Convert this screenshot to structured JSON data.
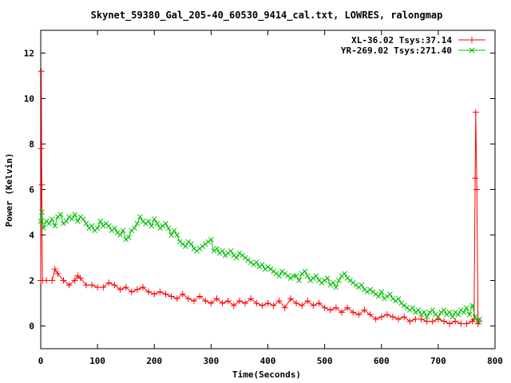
{
  "chart_data": {
    "type": "scatter",
    "title": "Skynet_59380_Gal_205-40_60530_9414_cal.txt, LOWRES, ralongmap",
    "xlabel": "Time(Seconds)",
    "ylabel": "Power (Kelvin)",
    "xlim": [
      0,
      800
    ],
    "ylim": [
      -1,
      13
    ],
    "xticks": [
      0,
      100,
      200,
      300,
      400,
      500,
      600,
      700,
      800
    ],
    "yticks": [
      0,
      2,
      4,
      6,
      8,
      10,
      12
    ],
    "grid": false,
    "legend_position": "top-right",
    "series": [
      {
        "name": "XL-36.02 Tsys:37.14",
        "color": "#ff0000",
        "marker": "plus",
        "points": [
          [
            0,
            2.0
          ],
          [
            1,
            7.8
          ],
          [
            1,
            11.2
          ],
          [
            2,
            6.2
          ],
          [
            3,
            2.0
          ],
          [
            10,
            2.0
          ],
          [
            20,
            2.0
          ],
          [
            25,
            2.5
          ],
          [
            30,
            2.3
          ],
          [
            40,
            2.0
          ],
          [
            50,
            1.8
          ],
          [
            60,
            2.0
          ],
          [
            65,
            2.2
          ],
          [
            70,
            2.1
          ],
          [
            80,
            1.8
          ],
          [
            90,
            1.8
          ],
          [
            100,
            1.7
          ],
          [
            110,
            1.7
          ],
          [
            120,
            1.9
          ],
          [
            130,
            1.8
          ],
          [
            140,
            1.6
          ],
          [
            150,
            1.7
          ],
          [
            160,
            1.5
          ],
          [
            170,
            1.6
          ],
          [
            180,
            1.7
          ],
          [
            190,
            1.5
          ],
          [
            200,
            1.4
          ],
          [
            210,
            1.5
          ],
          [
            220,
            1.4
          ],
          [
            230,
            1.3
          ],
          [
            240,
            1.2
          ],
          [
            250,
            1.4
          ],
          [
            260,
            1.2
          ],
          [
            270,
            1.1
          ],
          [
            280,
            1.3
          ],
          [
            290,
            1.1
          ],
          [
            300,
            1.0
          ],
          [
            310,
            1.2
          ],
          [
            320,
            1.0
          ],
          [
            330,
            1.1
          ],
          [
            340,
            0.9
          ],
          [
            350,
            1.1
          ],
          [
            360,
            1.0
          ],
          [
            370,
            1.2
          ],
          [
            380,
            1.0
          ],
          [
            390,
            0.9
          ],
          [
            400,
            1.0
          ],
          [
            410,
            0.9
          ],
          [
            420,
            1.1
          ],
          [
            430,
            0.8
          ],
          [
            440,
            1.2
          ],
          [
            450,
            1.0
          ],
          [
            460,
            0.9
          ],
          [
            470,
            1.1
          ],
          [
            480,
            0.9
          ],
          [
            490,
            1.0
          ],
          [
            500,
            0.8
          ],
          [
            510,
            0.7
          ],
          [
            520,
            0.8
          ],
          [
            530,
            0.6
          ],
          [
            540,
            0.8
          ],
          [
            550,
            0.6
          ],
          [
            560,
            0.5
          ],
          [
            570,
            0.7
          ],
          [
            580,
            0.5
          ],
          [
            590,
            0.3
          ],
          [
            600,
            0.4
          ],
          [
            610,
            0.5
          ],
          [
            620,
            0.4
          ],
          [
            630,
            0.3
          ],
          [
            640,
            0.4
          ],
          [
            650,
            0.2
          ],
          [
            660,
            0.3
          ],
          [
            670,
            0.3
          ],
          [
            680,
            0.2
          ],
          [
            690,
            0.2
          ],
          [
            700,
            0.3
          ],
          [
            710,
            0.2
          ],
          [
            720,
            0.1
          ],
          [
            730,
            0.2
          ],
          [
            740,
            0.1
          ],
          [
            750,
            0.1
          ],
          [
            760,
            0.2
          ],
          [
            763,
            0.3
          ],
          [
            765,
            6.5
          ],
          [
            766,
            9.4
          ],
          [
            768,
            6.0
          ],
          [
            770,
            0.1
          ],
          [
            772,
            0.2
          ]
        ]
      },
      {
        "name": "YR-269.02 Tsys:271.40",
        "color": "#00c000",
        "marker": "x",
        "points": [
          [
            0,
            4.6
          ],
          [
            2,
            5.0
          ],
          [
            5,
            4.3
          ],
          [
            10,
            4.6
          ],
          [
            15,
            4.5
          ],
          [
            20,
            4.7
          ],
          [
            25,
            4.4
          ],
          [
            30,
            4.8
          ],
          [
            35,
            4.9
          ],
          [
            40,
            4.5
          ],
          [
            45,
            4.6
          ],
          [
            50,
            4.8
          ],
          [
            55,
            4.7
          ],
          [
            60,
            4.9
          ],
          [
            65,
            4.6
          ],
          [
            70,
            4.8
          ],
          [
            75,
            4.7
          ],
          [
            80,
            4.5
          ],
          [
            85,
            4.3
          ],
          [
            90,
            4.4
          ],
          [
            95,
            4.2
          ],
          [
            100,
            4.3
          ],
          [
            105,
            4.6
          ],
          [
            110,
            4.4
          ],
          [
            115,
            4.5
          ],
          [
            120,
            4.4
          ],
          [
            125,
            4.2
          ],
          [
            130,
            4.3
          ],
          [
            135,
            4.1
          ],
          [
            140,
            4.0
          ],
          [
            145,
            4.2
          ],
          [
            150,
            3.8
          ],
          [
            155,
            3.9
          ],
          [
            160,
            4.2
          ],
          [
            165,
            4.3
          ],
          [
            170,
            4.5
          ],
          [
            175,
            4.8
          ],
          [
            180,
            4.6
          ],
          [
            185,
            4.5
          ],
          [
            190,
            4.6
          ],
          [
            195,
            4.4
          ],
          [
            200,
            4.7
          ],
          [
            205,
            4.5
          ],
          [
            210,
            4.3
          ],
          [
            215,
            4.4
          ],
          [
            220,
            4.5
          ],
          [
            225,
            4.3
          ],
          [
            230,
            4.0
          ],
          [
            235,
            4.2
          ],
          [
            240,
            4.0
          ],
          [
            245,
            3.7
          ],
          [
            250,
            3.6
          ],
          [
            255,
            3.5
          ],
          [
            260,
            3.7
          ],
          [
            265,
            3.6
          ],
          [
            270,
            3.4
          ],
          [
            275,
            3.3
          ],
          [
            280,
            3.4
          ],
          [
            285,
            3.5
          ],
          [
            290,
            3.6
          ],
          [
            295,
            3.7
          ],
          [
            300,
            3.8
          ],
          [
            305,
            3.3
          ],
          [
            310,
            3.4
          ],
          [
            315,
            3.2
          ],
          [
            320,
            3.3
          ],
          [
            325,
            3.1
          ],
          [
            330,
            3.2
          ],
          [
            335,
            3.3
          ],
          [
            340,
            3.1
          ],
          [
            345,
            3.0
          ],
          [
            350,
            3.2
          ],
          [
            355,
            3.1
          ],
          [
            360,
            3.0
          ],
          [
            365,
            2.9
          ],
          [
            370,
            2.8
          ],
          [
            375,
            2.7
          ],
          [
            380,
            2.8
          ],
          [
            385,
            2.6
          ],
          [
            390,
            2.7
          ],
          [
            395,
            2.5
          ],
          [
            400,
            2.6
          ],
          [
            405,
            2.5
          ],
          [
            410,
            2.4
          ],
          [
            415,
            2.3
          ],
          [
            420,
            2.2
          ],
          [
            425,
            2.4
          ],
          [
            430,
            2.3
          ],
          [
            435,
            2.2
          ],
          [
            440,
            2.1
          ],
          [
            445,
            2.2
          ],
          [
            450,
            2.2
          ],
          [
            455,
            2.0
          ],
          [
            460,
            2.3
          ],
          [
            465,
            2.4
          ],
          [
            470,
            2.2
          ],
          [
            475,
            2.0
          ],
          [
            480,
            2.1
          ],
          [
            485,
            2.2
          ],
          [
            490,
            2.0
          ],
          [
            495,
            1.9
          ],
          [
            500,
            2.0
          ],
          [
            505,
            2.1
          ],
          [
            510,
            1.8
          ],
          [
            515,
            1.9
          ],
          [
            520,
            1.7
          ],
          [
            525,
            2.0
          ],
          [
            530,
            2.2
          ],
          [
            535,
            2.3
          ],
          [
            540,
            2.1
          ],
          [
            545,
            2.0
          ],
          [
            550,
            1.9
          ],
          [
            555,
            1.8
          ],
          [
            560,
            1.7
          ],
          [
            565,
            1.8
          ],
          [
            570,
            1.6
          ],
          [
            575,
            1.5
          ],
          [
            580,
            1.6
          ],
          [
            585,
            1.5
          ],
          [
            590,
            1.4
          ],
          [
            595,
            1.3
          ],
          [
            600,
            1.5
          ],
          [
            605,
            1.2
          ],
          [
            610,
            1.3
          ],
          [
            615,
            1.4
          ],
          [
            620,
            1.2
          ],
          [
            625,
            1.1
          ],
          [
            630,
            1.2
          ],
          [
            635,
            1.0
          ],
          [
            640,
            0.9
          ],
          [
            645,
            0.8
          ],
          [
            650,
            0.7
          ],
          [
            655,
            0.8
          ],
          [
            660,
            0.6
          ],
          [
            665,
            0.7
          ],
          [
            670,
            0.5
          ],
          [
            675,
            0.6
          ],
          [
            680,
            0.4
          ],
          [
            685,
            0.6
          ],
          [
            690,
            0.7
          ],
          [
            695,
            0.5
          ],
          [
            700,
            0.4
          ],
          [
            705,
            0.6
          ],
          [
            710,
            0.7
          ],
          [
            715,
            0.5
          ],
          [
            720,
            0.6
          ],
          [
            725,
            0.4
          ],
          [
            730,
            0.6
          ],
          [
            735,
            0.5
          ],
          [
            740,
            0.7
          ],
          [
            745,
            0.6
          ],
          [
            750,
            0.8
          ],
          [
            755,
            0.5
          ],
          [
            760,
            0.9
          ],
          [
            765,
            0.4
          ],
          [
            770,
            0.2
          ],
          [
            773,
            0.3
          ]
        ]
      }
    ]
  }
}
